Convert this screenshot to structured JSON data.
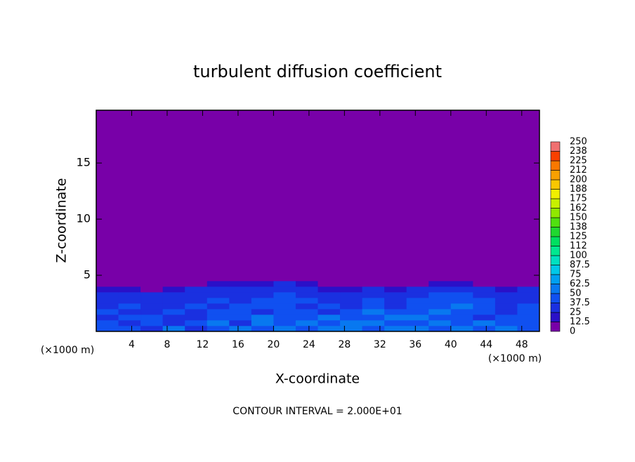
{
  "chart_data": {
    "type": "contour",
    "title": "turbulent diffusion coefficient",
    "x_label": "X-coordinate",
    "y_label": "Z-coordinate",
    "x_unit": "(×1000 m)",
    "footnote": "CONTOUR INTERVAL = 2.000E+01",
    "xlim": [
      0,
      50
    ],
    "ylim": [
      0,
      19.7
    ],
    "xticks": [
      4,
      8,
      12,
      16,
      20,
      24,
      28,
      32,
      36,
      40,
      44,
      48
    ],
    "yticks": [
      5,
      10,
      15
    ],
    "field": {
      "x": [
        1.25,
        3.75,
        6.25,
        8.75,
        11.25,
        13.75,
        16.25,
        18.75,
        21.25,
        23.75,
        26.25,
        28.75,
        31.25,
        33.75,
        36.25,
        38.75,
        41.25,
        43.75,
        46.25,
        48.75
      ],
      "z": [
        0.25,
        0.75,
        1.25,
        1.75,
        2.25,
        2.75,
        3.25,
        3.75,
        4.25,
        4.75
      ],
      "values": [
        [
          45,
          40,
          30,
          55,
          35,
          40,
          50,
          45,
          60,
          40,
          55,
          50,
          45,
          60,
          50,
          40,
          55,
          45,
          50,
          40
        ],
        [
          40,
          35,
          45,
          30,
          40,
          50,
          35,
          55,
          45,
          50,
          40,
          60,
          55,
          45,
          40,
          50,
          45,
          55,
          40,
          45
        ],
        [
          35,
          45,
          40,
          35,
          30,
          45,
          40,
          50,
          40,
          45,
          50,
          40,
          45,
          50,
          55,
          45,
          40,
          35,
          45,
          40
        ],
        [
          40,
          30,
          35,
          40,
          35,
          40,
          45,
          35,
          45,
          40,
          35,
          45,
          50,
          40,
          45,
          50,
          45,
          40,
          35,
          40
        ],
        [
          35,
          40,
          30,
          35,
          40,
          35,
          40,
          45,
          40,
          35,
          40,
          35,
          45,
          35,
          40,
          45,
          50,
          40,
          35,
          40
        ],
        [
          30,
          35,
          35,
          30,
          35,
          40,
          35,
          40,
          45,
          40,
          35,
          30,
          40,
          35,
          45,
          40,
          45,
          45,
          30,
          35
        ],
        [
          30,
          30,
          25,
          30,
          30,
          35,
          30,
          35,
          40,
          35,
          30,
          30,
          35,
          30,
          35,
          40,
          40,
          35,
          30,
          30
        ],
        [
          20,
          15,
          10,
          20,
          25,
          25,
          30,
          30,
          35,
          30,
          20,
          15,
          25,
          20,
          30,
          35,
          30,
          30,
          20,
          25
        ],
        [
          0,
          0,
          0,
          0,
          10,
          15,
          15,
          20,
          25,
          15,
          0,
          0,
          10,
          0,
          10,
          20,
          15,
          10,
          0,
          0
        ],
        [
          0,
          0,
          0,
          0,
          0,
          0,
          0,
          0,
          5,
          0,
          0,
          0,
          0,
          0,
          0,
          0,
          0,
          0,
          0,
          0
        ]
      ]
    },
    "colorbar": {
      "ticks": [
        0,
        12.5,
        25,
        37.5,
        50,
        62.5,
        75,
        87.5,
        100,
        {
          "value": 112.5,
          "label": "112"
        },
        125,
        {
          "value": 137.5,
          "label": "138"
        },
        150,
        {
          "value": 162.5,
          "label": "162"
        },
        175,
        {
          "value": 187.5,
          "label": "188"
        },
        200,
        {
          "value": 212.5,
          "label": "212"
        },
        225,
        {
          "value": 237.5,
          "label": "238"
        },
        250
      ],
      "colors": [
        "#7800a8",
        "#2a10c8",
        "#1a30e0",
        "#1050f0",
        "#0878f0",
        "#00a0f0",
        "#00c8e8",
        "#00e0c0",
        "#00e890",
        "#00e060",
        "#20d830",
        "#50e010",
        "#90e800",
        "#c8f000",
        "#f0f000",
        "#f8c800",
        "#f8a000",
        "#f87800",
        "#f84000",
        "#f07070"
      ]
    }
  }
}
